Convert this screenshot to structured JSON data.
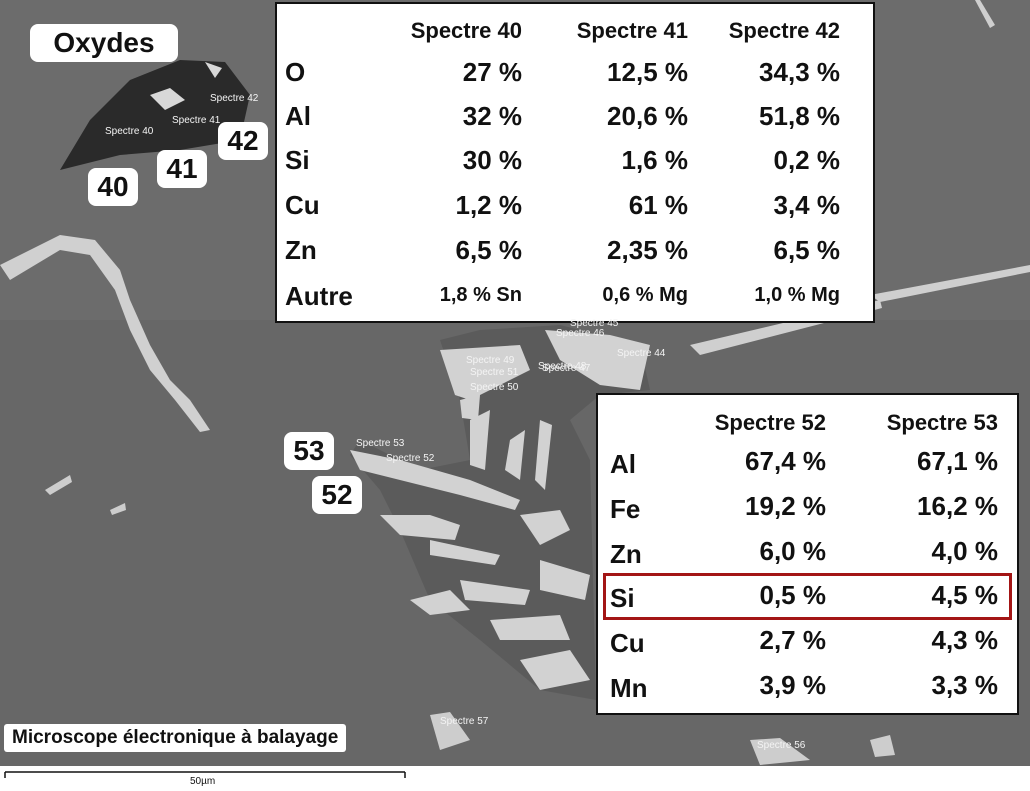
{
  "labels": {
    "title": "Oxydes",
    "markers": [
      "40",
      "41",
      "42",
      "53",
      "52"
    ]
  },
  "table1": {
    "header": [
      "Spectre 40",
      "Spectre 41",
      "Spectre 42"
    ],
    "rows": [
      [
        "O",
        "27 %",
        "12,5 %",
        "34,3 %"
      ],
      [
        "Al",
        "32 %",
        "20,6 %",
        "51,8 %"
      ],
      [
        "Si",
        "30 %",
        "1,6 %",
        "0,2 %"
      ],
      [
        "Cu",
        "1,2 %",
        "61 %",
        "3,4 %"
      ],
      [
        "Zn",
        "6,5 %",
        "2,35 %",
        "6,5 %"
      ],
      [
        "Autre",
        "1,8 % Sn",
        "0,6 % Mg",
        "1,0 % Mg"
      ]
    ]
  },
  "table2": {
    "header": [
      "Spectre 52",
      "Spectre 53"
    ],
    "rows": [
      [
        "Al",
        "67,4 %",
        "67,1 %"
      ],
      [
        "Fe",
        "19,2 %",
        "16,2 %"
      ],
      [
        "Zn",
        "6,0 %",
        "4,0 %"
      ],
      [
        "Si",
        "0,5 %",
        "4,5 %"
      ],
      [
        "Cu",
        "2,7 %",
        "4,3 %"
      ],
      [
        "Mn",
        "3,9 %",
        "3,3 %"
      ]
    ]
  },
  "image_labels": [
    "Spectre 42",
    "Spectre 41",
    "Spectre 40",
    "Spectre 45",
    "Spectre 46",
    "Spectre 49",
    "Spectre 51",
    "Spectre 48",
    "Spectre 47",
    "Spectre 50",
    "Spectre 44",
    "Spectre 53",
    "Spectre 52",
    "Spectre 57",
    "Spectre 56"
  ],
  "caption": "Microscope électronique à balayage",
  "scale": "50µm"
}
